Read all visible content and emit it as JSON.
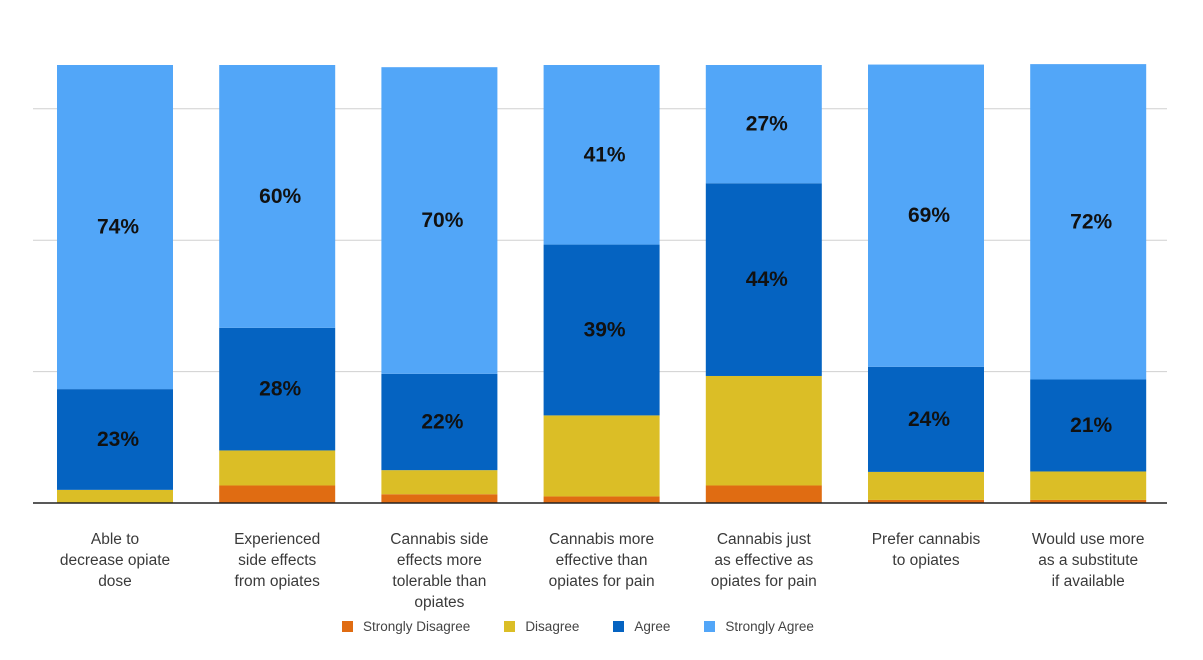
{
  "chart_data": {
    "type": "bar",
    "stacked": true,
    "title": "",
    "xlabel": "",
    "ylabel": "",
    "ylim": [
      0,
      100
    ],
    "grid": true,
    "y_gridlines": [
      30,
      60,
      90
    ],
    "y_tick_labels_shown": false,
    "legend_position": "bottom",
    "categories": [
      "Able to decrease opiate dose",
      "Experienced side effects from opiates",
      "Cannabis side effects more tolerable than opiates",
      "Cannabis more effective than opiates for pain",
      "Cannabis just as effective as opiates for pain",
      "Prefer cannabis to opiates",
      "Would use more as a substitute if available"
    ],
    "category_lines": [
      [
        "Able to",
        "decrease opiate",
        "dose"
      ],
      [
        "Experienced",
        "side effects",
        "from opiates"
      ],
      [
        "Cannabis side",
        "effects more",
        "tolerable than",
        "opiates"
      ],
      [
        "Cannabis more",
        "effective than",
        "opiates for pain"
      ],
      [
        "Cannabis just",
        "as effective as",
        "opiates for pain"
      ],
      [
        "Prefer cannabis",
        "to opiates"
      ],
      [
        "Would use more",
        "as a substitute",
        "if available"
      ]
    ],
    "series": [
      {
        "name": "Strongly Disagree",
        "color": "#e06c12",
        "values": [
          0,
          4,
          2,
          1.5,
          4,
          0.7,
          0.7
        ],
        "labels": [
          "",
          "",
          "",
          "",
          "",
          "",
          ""
        ]
      },
      {
        "name": "Disagree",
        "color": "#dbbe26",
        "values": [
          3,
          8,
          5.5,
          18.5,
          25,
          6.4,
          6.5
        ],
        "labels": [
          "",
          "",
          "",
          "",
          "",
          "",
          ""
        ]
      },
      {
        "name": "Agree",
        "color": "#0563c1",
        "values": [
          23,
          28,
          22,
          39,
          44,
          24,
          21
        ],
        "labels": [
          "23%",
          "28%",
          "22%",
          "39%",
          "44%",
          "24%",
          "21%"
        ]
      },
      {
        "name": "Strongly Agree",
        "color": "#52a6f8",
        "values": [
          74,
          60,
          70,
          41,
          27,
          69,
          72
        ],
        "labels": [
          "74%",
          "60%",
          "70%",
          "41%",
          "27%",
          "69%",
          "72%"
        ]
      }
    ]
  },
  "legend": [
    {
      "label": "Strongly Disagree",
      "color": "#e06c12"
    },
    {
      "label": "Disagree",
      "color": "#dbbe26"
    },
    {
      "label": "Agree",
      "color": "#0563c1"
    },
    {
      "label": "Strongly Agree",
      "color": "#52a6f8"
    }
  ]
}
